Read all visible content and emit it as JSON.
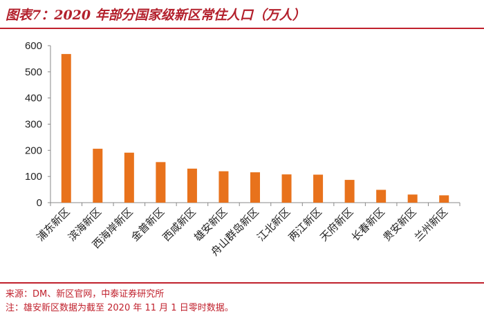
{
  "header": {
    "title": "图表7：2020 年部分国家级新区常住人口（万人）"
  },
  "footer": {
    "source": "来源：DM、新区官网，中泰证券研究所",
    "note": "注：雄安新区数据为截至 2020 年 11 月 1 日零时数据。"
  },
  "colors": {
    "bar": "#e8721c",
    "accent": "#c0202c"
  },
  "chart_data": {
    "type": "bar",
    "categories": [
      "浦东新区",
      "滨海新区",
      "西海岸新区",
      "金普新区",
      "西咸新区",
      "雄安新区",
      "舟山群岛新区",
      "江北新区",
      "两江新区",
      "天府新区",
      "长春新区",
      "贵安新区",
      "兰州新区"
    ],
    "values": [
      568,
      206,
      191,
      155,
      130,
      120,
      116,
      108,
      107,
      87,
      49,
      31,
      28
    ],
    "ylim": [
      0,
      600
    ],
    "yticks": [
      0,
      100,
      200,
      300,
      400,
      500,
      600
    ],
    "grid": false,
    "legend": "none"
  }
}
